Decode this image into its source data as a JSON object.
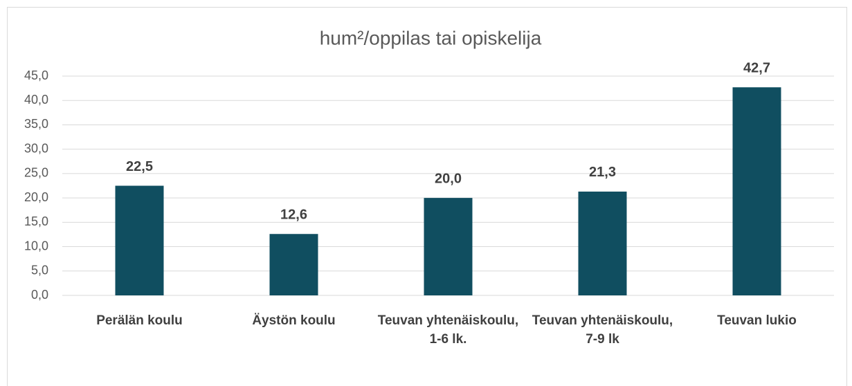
{
  "chart_data": {
    "type": "bar",
    "title": "hum²/oppilas tai opiskelija",
    "categories": [
      "Perälän koulu",
      "Äystön koulu",
      "Teuvan yhtenäiskoulu, 1-6 lk.",
      "Teuvan yhtenäiskoulu, 7-9 lk",
      "Teuvan lukio"
    ],
    "values": [
      22.5,
      12.6,
      20.0,
      21.3,
      42.7
    ],
    "value_labels": [
      "22,5",
      "12,6",
      "20,0",
      "21,3",
      "42,7"
    ],
    "color": "#104e60",
    "ylim": [
      0,
      45
    ],
    "yticks": [
      {
        "value": 0,
        "label": "0,0"
      },
      {
        "value": 5,
        "label": "5,0"
      },
      {
        "value": 10,
        "label": "10,0"
      },
      {
        "value": 15,
        "label": "15,0"
      },
      {
        "value": 20,
        "label": "20,0"
      },
      {
        "value": 25,
        "label": "25,0"
      },
      {
        "value": 30,
        "label": "30,0"
      },
      {
        "value": 35,
        "label": "35,0"
      },
      {
        "value": 40,
        "label": "40,0"
      },
      {
        "value": 45,
        "label": "45,0"
      }
    ],
    "grid": true
  }
}
